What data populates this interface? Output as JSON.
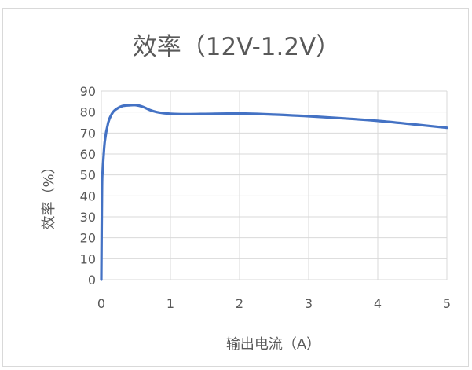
{
  "chart_data": {
    "type": "line",
    "title": "效率（12V-1.2V）",
    "xlabel": "输出电流（A）",
    "ylabel": "效率（%）",
    "xlim": [
      0,
      5
    ],
    "ylim": [
      0,
      90
    ],
    "x_ticks": [
      "0",
      "1",
      "2",
      "3",
      "4",
      "5"
    ],
    "y_ticks": [
      "0",
      "10",
      "20",
      "30",
      "40",
      "50",
      "60",
      "70",
      "80",
      "90"
    ],
    "grid": true,
    "legend": "none",
    "series": [
      {
        "color": "#4472c4",
        "x": [
          0.0,
          0.01,
          0.02,
          0.05,
          0.1,
          0.15,
          0.2,
          0.3,
          0.4,
          0.5,
          0.6,
          0.7,
          0.8,
          0.9,
          1.0,
          1.2,
          1.5,
          2.0,
          2.5,
          3.0,
          3.5,
          4.0,
          4.5,
          5.0
        ],
        "y": [
          0.0,
          44.0,
          52.0,
          66.0,
          75.0,
          79.0,
          81.0,
          82.8,
          83.2,
          83.3,
          82.5,
          81.0,
          80.0,
          79.5,
          79.2,
          79.0,
          79.1,
          79.3,
          78.8,
          78.0,
          77.0,
          75.8,
          74.2,
          72.5
        ]
      }
    ]
  },
  "colors": {
    "line": "#4472c4",
    "grid": "#d9d9d9",
    "text": "#595959"
  }
}
